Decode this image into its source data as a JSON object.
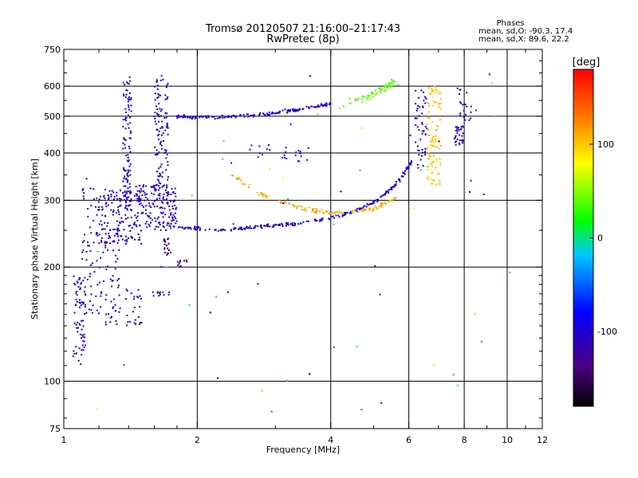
{
  "chart_data": {
    "type": "scatter",
    "title": "Tromsø 20120507 21:16:00–21:17:43",
    "subtitle": "RwPretec (8p)",
    "phases_header": "Phases",
    "phases_stats": [
      "mean, sd,O: -90.3, 17.4",
      "mean, sd,X:  89.6, 22.2"
    ],
    "xlabel": "Frequency [MHz]",
    "ylabel": "Stationary phase Virtual Height [km]",
    "xscale": "log",
    "yscale": "log",
    "xlim": [
      1,
      12
    ],
    "ylim": [
      75,
      750
    ],
    "x_ticks": [
      1,
      2,
      4,
      6,
      8,
      10,
      12
    ],
    "x_tick_labels": [
      "1",
      "2",
      "4",
      "6",
      "8",
      "10",
      "12"
    ],
    "x_grid": [
      2,
      4,
      6,
      8,
      10
    ],
    "y_ticks": [
      75,
      100,
      200,
      300,
      400,
      500,
      600,
      750
    ],
    "y_tick_labels": [
      "75",
      "100",
      "200",
      "300",
      "400",
      "500",
      "600",
      "750"
    ],
    "y_grid": [
      100,
      200,
      300,
      400,
      500,
      600
    ],
    "grid": true,
    "colorbar": {
      "label": "[deg]",
      "min": -180,
      "max": 180,
      "ticks": [
        100,
        0,
        -100
      ],
      "tick_labels": [
        "100",
        "0",
        "-100"
      ]
    },
    "traces": [
      {
        "kind": "blob",
        "x": [
          1.05,
          1.12
        ],
        "y": [
          110,
          190
        ],
        "phase": -110,
        "n": 70
      },
      {
        "kind": "blob",
        "x": [
          1.1,
          1.35
        ],
        "y": [
          140,
          330
        ],
        "phase": -105,
        "n": 150
      },
      {
        "kind": "blob",
        "x": [
          1.2,
          1.5
        ],
        "y": [
          230,
          320
        ],
        "phase": -100,
        "n": 120
      },
      {
        "kind": "blob",
        "x": [
          1.36,
          1.42
        ],
        "y": [
          280,
          640
        ],
        "phase": -105,
        "n": 110
      },
      {
        "kind": "blob",
        "x": [
          1.38,
          1.5
        ],
        "y": [
          140,
          175
        ],
        "phase": -110,
        "n": 25
      },
      {
        "kind": "blob",
        "x": [
          1.45,
          1.8
        ],
        "y": [
          250,
          330
        ],
        "phase": -100,
        "n": 160
      },
      {
        "kind": "blob",
        "x": [
          1.6,
          1.72
        ],
        "y": [
          300,
          640
        ],
        "phase": -105,
        "n": 120
      },
      {
        "kind": "blob",
        "x": [
          1.68,
          1.75
        ],
        "y": [
          215,
          240
        ],
        "phase": -140,
        "n": 20
      },
      {
        "kind": "blob",
        "x": [
          1.58,
          1.73
        ],
        "y": [
          168,
          172
        ],
        "phase": -120,
        "n": 12
      },
      {
        "kind": "blob",
        "x": [
          1.8,
          1.9
        ],
        "y": [
          200,
          210
        ],
        "phase": -120,
        "n": 10
      },
      {
        "kind": "curve",
        "x": [
          1.8,
          2.2,
          2.8,
          3.4,
          4.0
        ],
        "y": [
          500,
          495,
          505,
          520,
          540
        ],
        "phase": -100,
        "n": 160,
        "spread": 0.015
      },
      {
        "kind": "curve",
        "x": [
          1.8,
          2.2,
          2.7,
          3.3,
          3.9,
          4.5,
          5.1,
          5.6,
          6.1
        ],
        "y": [
          255,
          250,
          255,
          260,
          268,
          280,
          300,
          330,
          380
        ],
        "phase": -100,
        "n": 230,
        "spread": 0.015
      },
      {
        "kind": "curve",
        "x": [
          2.4,
          2.8,
          3.3,
          3.8,
          4.4,
          5.0,
          5.6
        ],
        "y": [
          350,
          310,
          290,
          280,
          278,
          285,
          305
        ],
        "phase": 110,
        "n": 130,
        "spread": 0.02
      },
      {
        "kind": "curve",
        "x": [
          4.2,
          4.8,
          5.3,
          5.6
        ],
        "y": [
          535,
          560,
          595,
          620
        ],
        "phase": 40,
        "n": 70,
        "spread": 0.03
      },
      {
        "kind": "blob",
        "x": [
          6.6,
          7.1
        ],
        "y": [
          330,
          600
        ],
        "phase": 100,
        "n": 110
      },
      {
        "kind": "blob",
        "x": [
          6.2,
          6.6
        ],
        "y": [
          360,
          600
        ],
        "phase": -90,
        "n": 50
      },
      {
        "kind": "blob",
        "x": [
          7.6,
          8.0
        ],
        "y": [
          420,
          470
        ],
        "phase": -110,
        "n": 35
      },
      {
        "kind": "blob",
        "x": [
          7.7,
          8.3
        ],
        "y": [
          480,
          600
        ],
        "phase": -100,
        "n": 20
      },
      {
        "kind": "blob",
        "x": [
          2.6,
          3.6
        ],
        "y": [
          380,
          420
        ],
        "phase": -80,
        "n": 25
      },
      {
        "kind": "scatter",
        "x": [
          1.0,
          11.5
        ],
        "y": [
          80,
          700
        ],
        "phase": -20,
        "n": 60
      }
    ]
  }
}
